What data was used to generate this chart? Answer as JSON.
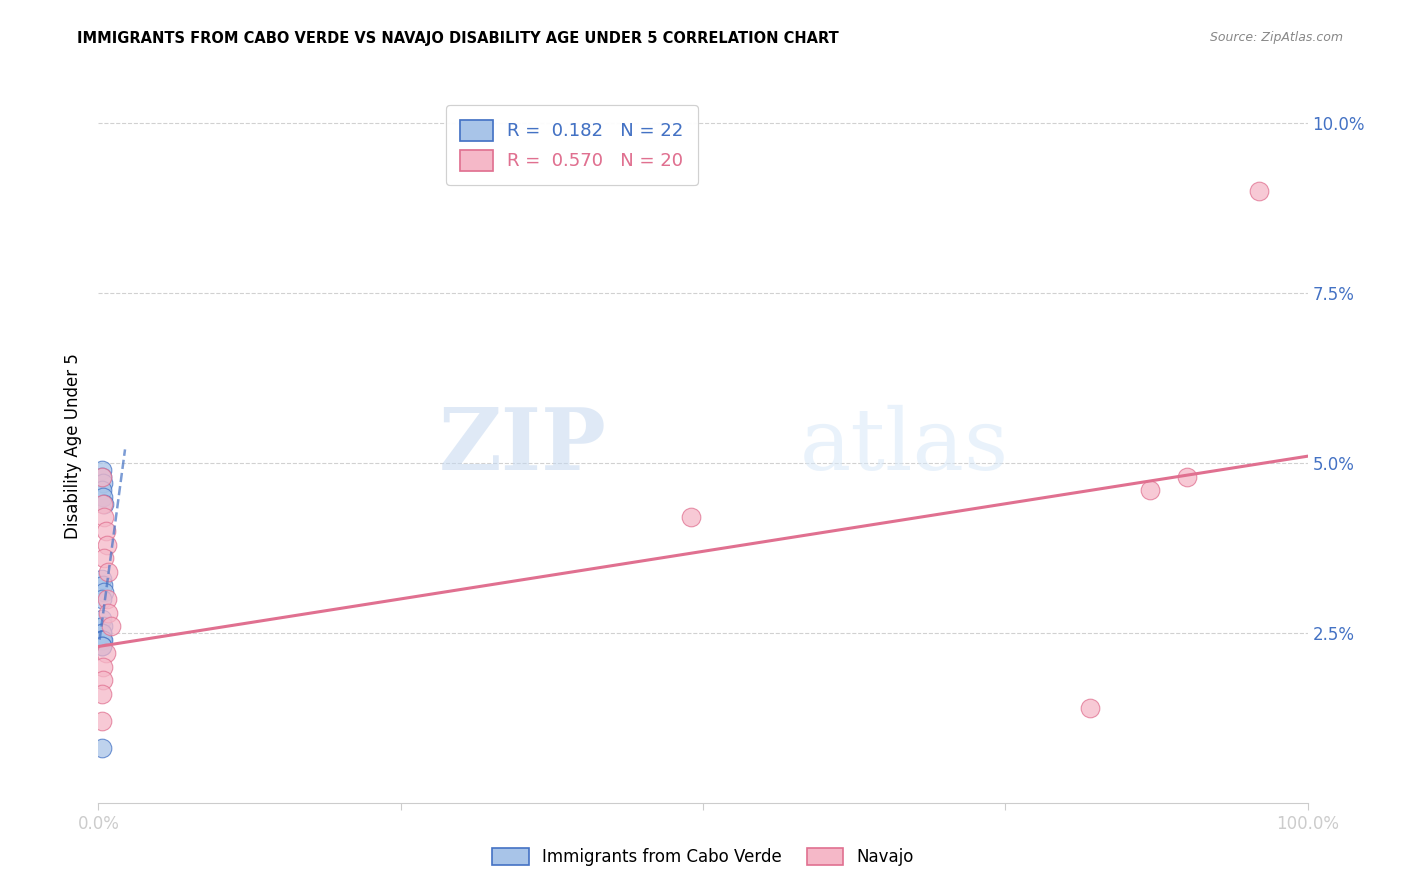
{
  "title": "IMMIGRANTS FROM CABO VERDE VS NAVAJO DISABILITY AGE UNDER 5 CORRELATION CHART",
  "source": "Source: ZipAtlas.com",
  "ylabel": "Disability Age Under 5",
  "legend_blue_r": "0.182",
  "legend_blue_n": "22",
  "legend_pink_r": "0.570",
  "legend_pink_n": "20",
  "watermark_zip": "ZIP",
  "watermark_atlas": "atlas",
  "blue_scatter": [
    [
      0.003,
      0.049
    ],
    [
      0.003,
      0.048
    ],
    [
      0.004,
      0.047
    ],
    [
      0.003,
      0.046
    ],
    [
      0.004,
      0.045
    ],
    [
      0.005,
      0.044
    ],
    [
      0.003,
      0.033
    ],
    [
      0.004,
      0.032
    ],
    [
      0.005,
      0.031
    ],
    [
      0.003,
      0.03
    ],
    [
      0.003,
      0.027
    ],
    [
      0.004,
      0.026
    ],
    [
      0.003,
      0.025
    ],
    [
      0.003,
      0.025
    ],
    [
      0.003,
      0.024
    ],
    [
      0.003,
      0.024
    ],
    [
      0.003,
      0.024
    ],
    [
      0.003,
      0.024
    ],
    [
      0.004,
      0.024
    ],
    [
      0.003,
      0.023
    ],
    [
      0.003,
      0.023
    ],
    [
      0.003,
      0.008
    ]
  ],
  "pink_scatter": [
    [
      0.003,
      0.048
    ],
    [
      0.004,
      0.044
    ],
    [
      0.005,
      0.042
    ],
    [
      0.006,
      0.04
    ],
    [
      0.007,
      0.038
    ],
    [
      0.005,
      0.036
    ],
    [
      0.008,
      0.034
    ],
    [
      0.007,
      0.03
    ],
    [
      0.008,
      0.028
    ],
    [
      0.01,
      0.026
    ],
    [
      0.006,
      0.022
    ],
    [
      0.004,
      0.02
    ],
    [
      0.004,
      0.018
    ],
    [
      0.003,
      0.016
    ],
    [
      0.003,
      0.012
    ],
    [
      0.49,
      0.042
    ],
    [
      0.82,
      0.014
    ],
    [
      0.87,
      0.046
    ],
    [
      0.9,
      0.048
    ],
    [
      0.96,
      0.09
    ]
  ],
  "blue_line_x": [
    0.001,
    0.022
  ],
  "blue_line_y": [
    0.024,
    0.052
  ],
  "pink_line_x": [
    0.0,
    1.0
  ],
  "pink_line_y": [
    0.023,
    0.051
  ],
  "xlim": [
    0.0,
    1.0
  ],
  "ylim": [
    0.0,
    0.105
  ],
  "yticks": [
    0.025,
    0.05,
    0.075,
    0.1
  ],
  "ytick_labels": [
    "2.5%",
    "5.0%",
    "7.5%",
    "10.0%"
  ],
  "xticks": [
    0.0,
    0.25,
    0.5,
    0.75,
    1.0
  ],
  "xtick_labels": [
    "0.0%",
    "",
    "",
    "",
    "100.0%"
  ],
  "blue_color": "#a8c4e8",
  "pink_color": "#f5b8c8",
  "blue_line_color": "#4472c4",
  "pink_line_color": "#e07090",
  "axis_label_color": "#4472c4",
  "grid_color": "#cccccc",
  "background_color": "#ffffff"
}
